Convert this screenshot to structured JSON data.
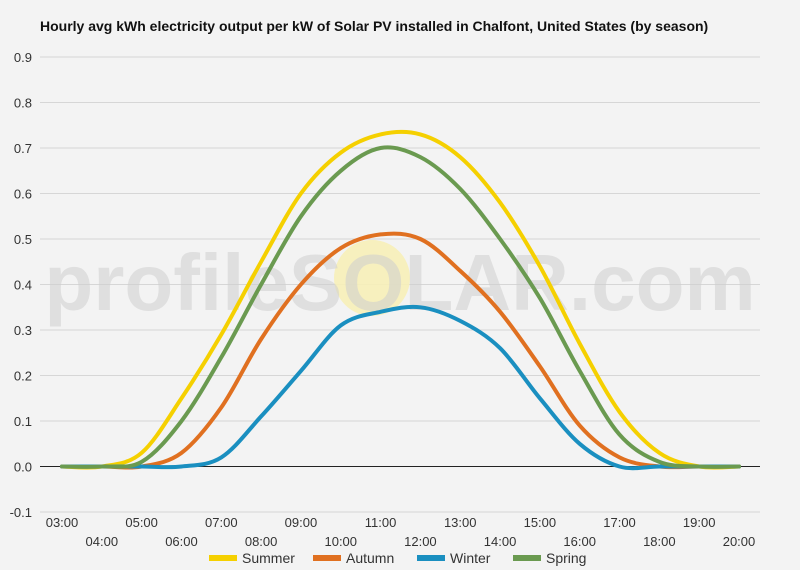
{
  "chart_data": {
    "type": "line",
    "title": "Hourly avg kWh electricity output per kW of Solar PV installed in Chalfont, United States (by season)",
    "xlabel": "",
    "ylabel": "",
    "watermark": "profileSOLAR.com",
    "ylim": [
      -0.1,
      0.9
    ],
    "y_ticks": [
      "-0.1",
      "0.0",
      "0.1",
      "0.2",
      "0.3",
      "0.4",
      "0.5",
      "0.6",
      "0.7",
      "0.8",
      "0.9"
    ],
    "x": [
      "03:00",
      "04:00",
      "05:00",
      "06:00",
      "07:00",
      "08:00",
      "09:00",
      "10:00",
      "11:00",
      "12:00",
      "13:00",
      "14:00",
      "15:00",
      "16:00",
      "17:00",
      "18:00",
      "19:00",
      "20:00"
    ],
    "grid": true,
    "legend_position": "bottom",
    "series": [
      {
        "name": "Summer",
        "color": "#f5d000",
        "values": [
          0.0,
          0.0,
          0.03,
          0.15,
          0.29,
          0.45,
          0.6,
          0.69,
          0.73,
          0.73,
          0.68,
          0.58,
          0.44,
          0.27,
          0.12,
          0.03,
          0.0,
          0.0
        ]
      },
      {
        "name": "Autumn",
        "color": "#e07020",
        "values": [
          0.0,
          0.0,
          0.0,
          0.03,
          0.13,
          0.28,
          0.4,
          0.48,
          0.51,
          0.5,
          0.43,
          0.34,
          0.22,
          0.09,
          0.02,
          0.0,
          0.0,
          0.0
        ]
      },
      {
        "name": "Winter",
        "color": "#1a8fc0",
        "values": [
          0.0,
          0.0,
          0.0,
          0.0,
          0.02,
          0.11,
          0.21,
          0.31,
          0.34,
          0.35,
          0.32,
          0.26,
          0.15,
          0.05,
          0.0,
          0.0,
          0.0,
          0.0
        ]
      },
      {
        "name": "Spring",
        "color": "#6a9a50",
        "values": [
          0.0,
          0.0,
          0.01,
          0.1,
          0.24,
          0.4,
          0.55,
          0.65,
          0.7,
          0.68,
          0.61,
          0.5,
          0.37,
          0.21,
          0.07,
          0.01,
          0.0,
          0.0
        ]
      }
    ]
  }
}
